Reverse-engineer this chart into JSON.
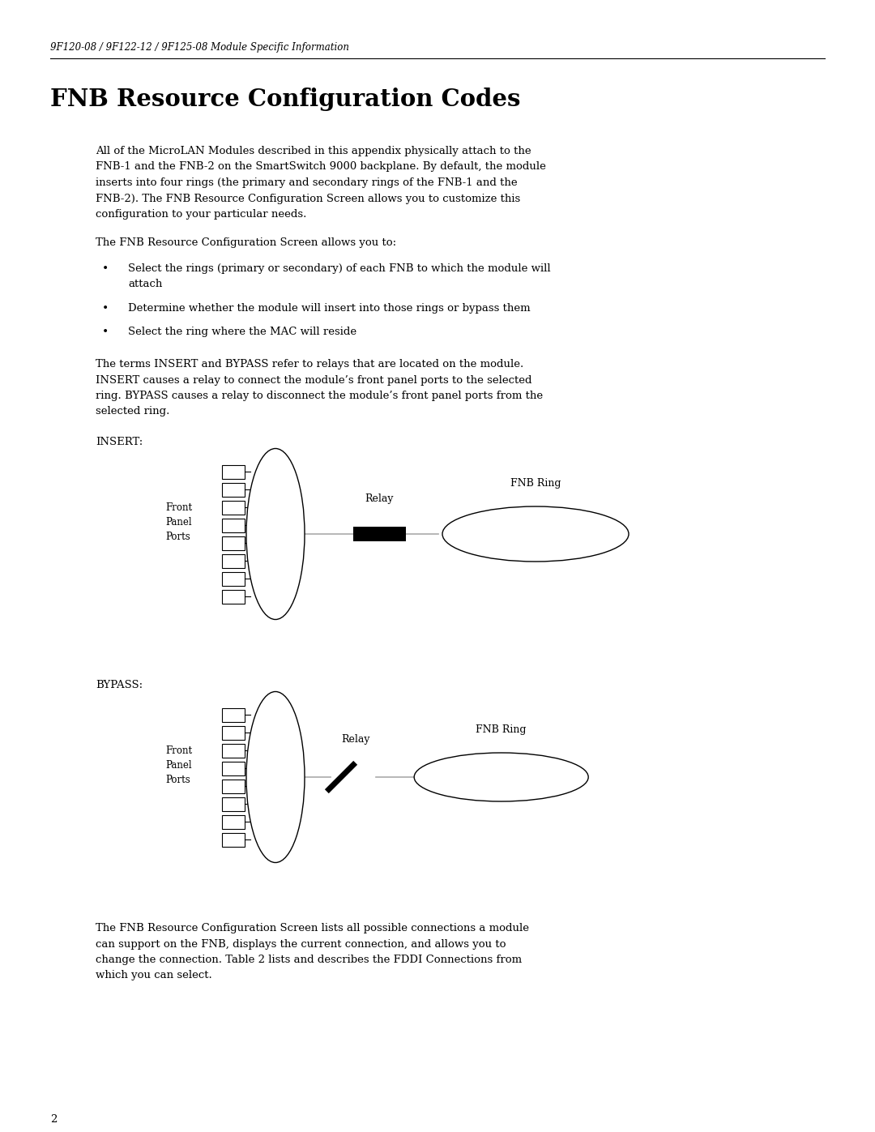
{
  "header_text": "9F120-08 / 9F122-12 / 9F125-08 Module Specific Information",
  "title": "FNB Resource Configuration Codes",
  "para1_lines": [
    "All of the MicroLAN Modules described in this appendix physically attach to the",
    "FNB-1 and the FNB-2 on the SmartSwitch 9000 backplane. By default, the module",
    "inserts into four rings (the primary and secondary rings of the FNB-1 and the",
    "FNB-2). The FNB Resource Configuration Screen allows you to customize this",
    "configuration to your particular needs."
  ],
  "para2": "The FNB Resource Configuration Screen allows you to:",
  "bullets": [
    [
      "Select the rings (primary or secondary) of each FNB to which the module will",
      "attach"
    ],
    [
      "Determine whether the module will insert into those rings or bypass them"
    ],
    [
      "Select the ring where the MAC will reside"
    ]
  ],
  "para3_lines": [
    "The terms INSERT and BYPASS refer to relays that are located on the module.",
    "INSERT causes a relay to connect the module’s front panel ports to the selected",
    "ring. BYPASS causes a relay to disconnect the module’s front panel ports from the",
    "selected ring."
  ],
  "insert_label": "INSERT:",
  "bypass_label": "BYPASS:",
  "relay_label": "Relay",
  "fnb_ring_label": "FNB Ring",
  "front_panel_label": "Front\nPanel\nPorts",
  "para4_lines": [
    "The FNB Resource Configuration Screen lists all possible connections a module",
    "can support on the FNB, displays the current connection, and allows you to",
    "change the connection. Table 2 lists and describes the FDDI Connections from",
    "which you can select."
  ],
  "page_number": "2",
  "bg_color": "#ffffff"
}
